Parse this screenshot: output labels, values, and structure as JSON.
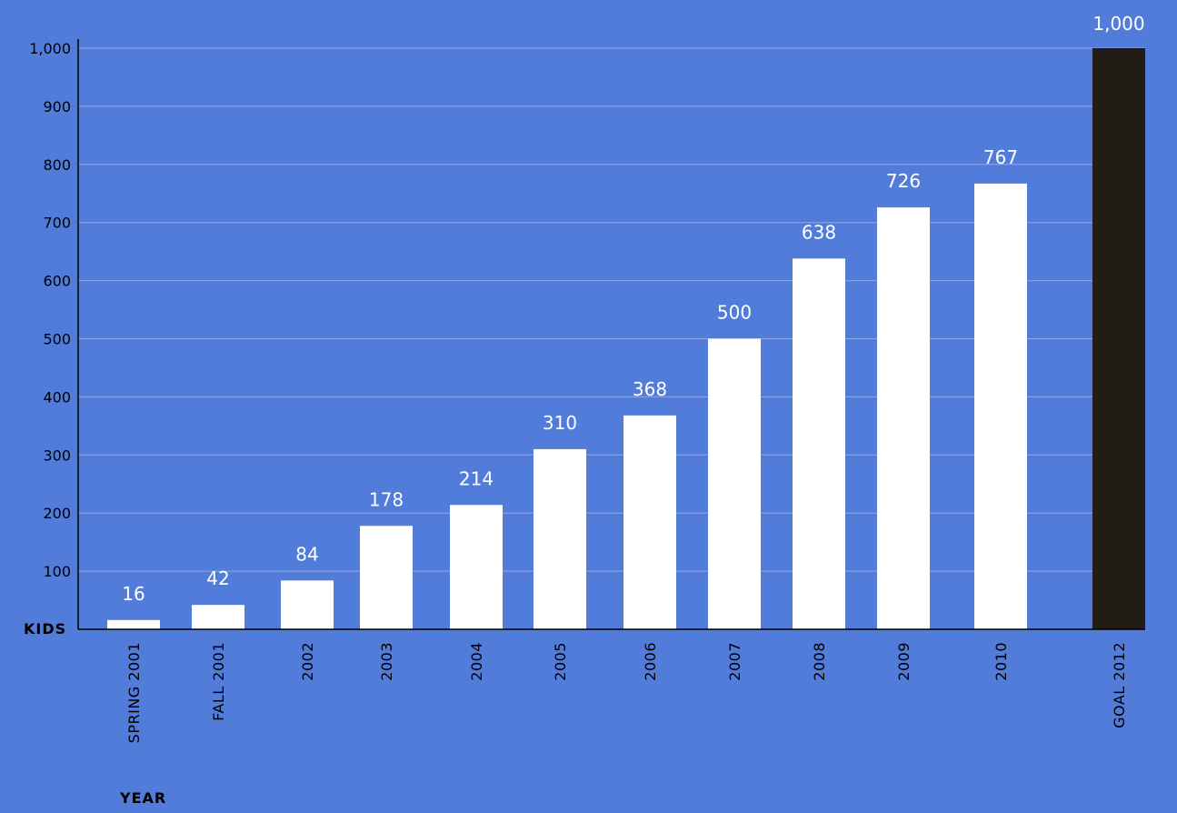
{
  "chart_data": {
    "type": "bar",
    "categories": [
      "SPRING 2001",
      "FALL 2001",
      "2002",
      "2003",
      "2004",
      "2005",
      "2006",
      "2007",
      "2008",
      "2009",
      "2010",
      "GOAL 2012"
    ],
    "values": [
      16,
      42,
      84,
      178,
      214,
      310,
      368,
      500,
      638,
      726,
      767,
      1000
    ],
    "value_labels": [
      "16",
      "42",
      "84",
      "178",
      "214",
      "310",
      "368",
      "500",
      "638",
      "726",
      "767",
      "1,000"
    ],
    "y_ticks": [
      "100",
      "200",
      "300",
      "400",
      "500",
      "600",
      "700",
      "800",
      "900",
      "1,000"
    ],
    "y_tick_values": [
      100,
      200,
      300,
      400,
      500,
      600,
      700,
      800,
      900,
      1000
    ],
    "ylim": [
      0,
      1000
    ],
    "ylabel": "KIDS",
    "xlabel": "YEAR",
    "grid": true,
    "colors": {
      "background": "#527cda",
      "bar": "#ffffff",
      "goal_bar": "#221c16",
      "gridline": "#8fa9ea",
      "axis": "#000000",
      "value_label": "#ffffff"
    }
  }
}
